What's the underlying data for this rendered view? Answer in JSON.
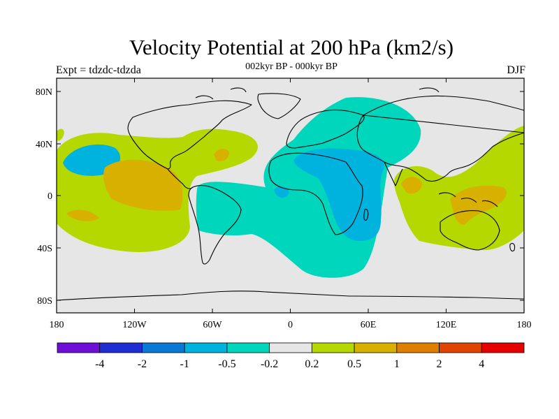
{
  "title": "Velocity Potential at 200 hPa (km2/s)",
  "subtitle": "002kyr BP - 000kyr BP",
  "left_label": "Expt = tdzdc-tdzda",
  "right_label": "DJF",
  "lat_ticks": [
    "80N",
    "40N",
    "0",
    "40S",
    "80S"
  ],
  "lon_ticks": [
    "180",
    "120W",
    "60W",
    "0",
    "60E",
    "120E",
    "180"
  ],
  "colorbar": {
    "colors": [
      "#6d0fd6",
      "#1f2ed3",
      "#0a79d6",
      "#00b3df",
      "#00d6bb",
      "#e6e6e6",
      "#b5d800",
      "#d7b000",
      "#df7f00",
      "#df4500",
      "#e60000"
    ],
    "labels": [
      "-4",
      "-2",
      "-1",
      "-0.5",
      "-0.2",
      "0.2",
      "0.5",
      "1",
      "2",
      "4"
    ]
  },
  "colors": {
    "neutral": "#e6e6e6",
    "pos_low": "#b5d800",
    "pos_mid": "#d7b000",
    "neg_low": "#00d6bb",
    "neg_mid": "#00b3df"
  }
}
